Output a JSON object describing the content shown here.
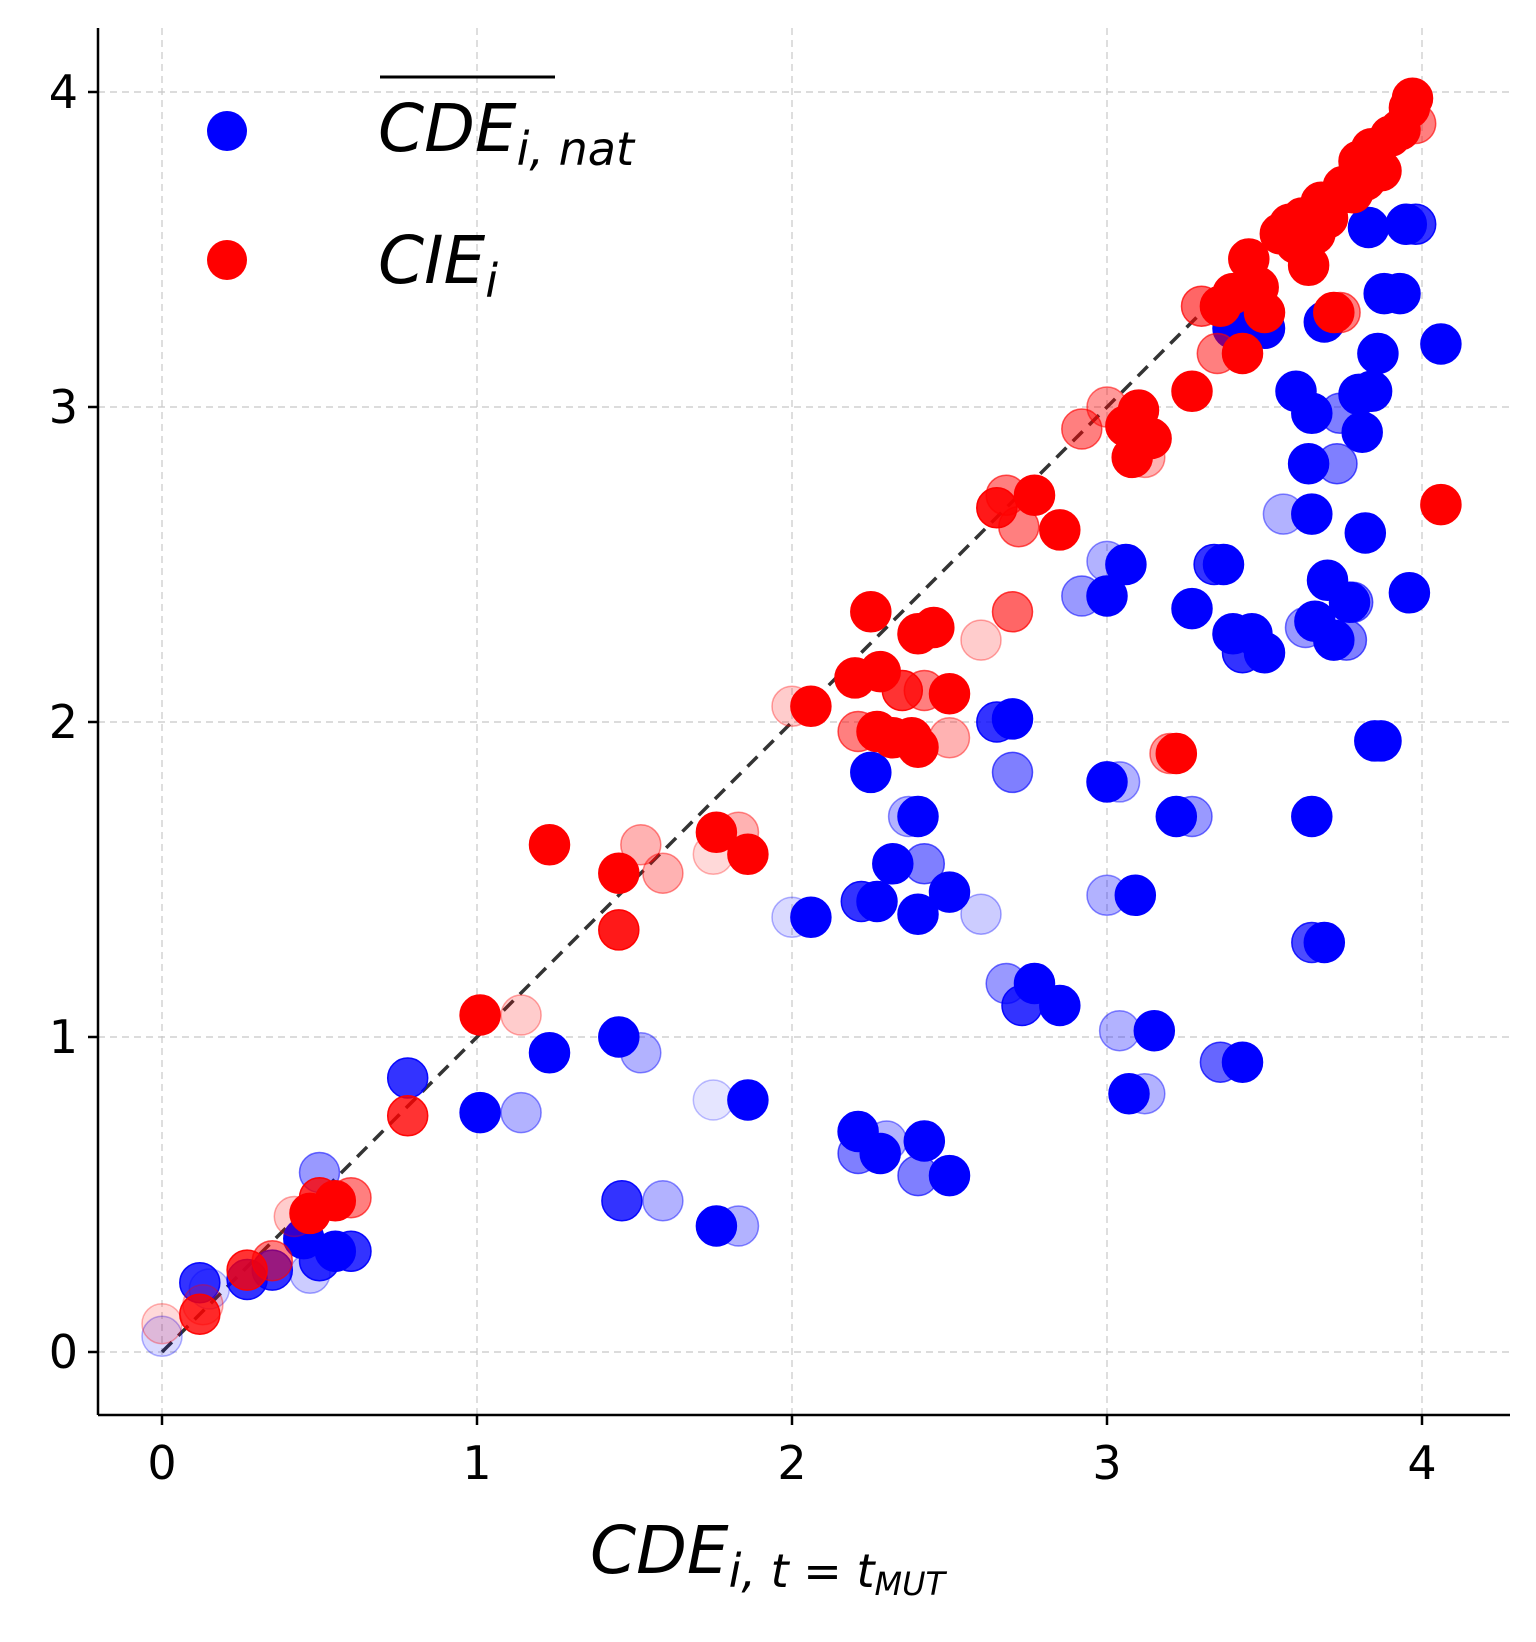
{
  "chart_data": {
    "type": "scatter",
    "xlabel": {
      "base": "CDE",
      "sub": "i, t = t",
      "subsub": "MUT"
    },
    "xlim": [
      -0.2,
      4.27
    ],
    "ylim": [
      -0.2,
      4.2
    ],
    "xticks": [
      "0",
      "1",
      "2",
      "3",
      "4"
    ],
    "yticks": [
      "0",
      "1",
      "2",
      "3",
      "4"
    ],
    "grid": true,
    "legend_position": "top-left",
    "reference_line": {
      "style": "dashed",
      "from": [
        0,
        0
      ],
      "to": [
        4,
        4
      ],
      "color": "#333333"
    },
    "series": [
      {
        "name": "CDE",
        "legend_base": "CDE",
        "legend_sub": "i, nat",
        "legend_overline": true,
        "color": "#0000ff",
        "points": [
          [
            0.0,
            0.05,
            0.15
          ],
          [
            0.12,
            0.22,
            0.8
          ],
          [
            0.15,
            0.2,
            0.15
          ],
          [
            0.27,
            0.23,
            0.8
          ],
          [
            0.35,
            0.26,
            0.8
          ],
          [
            0.45,
            0.36,
            1.0
          ],
          [
            0.47,
            0.25,
            0.2
          ],
          [
            0.5,
            0.57,
            0.4
          ],
          [
            0.5,
            0.29,
            0.8
          ],
          [
            0.55,
            0.32,
            1.0
          ],
          [
            0.6,
            0.32,
            0.8
          ],
          [
            0.78,
            0.87,
            0.8
          ],
          [
            1.01,
            0.76,
            1.0
          ],
          [
            1.14,
            0.76,
            0.3
          ],
          [
            1.23,
            0.95,
            1.0
          ],
          [
            1.45,
            1.0,
            1.0
          ],
          [
            1.52,
            0.95,
            0.3
          ],
          [
            1.46,
            0.48,
            0.8
          ],
          [
            1.59,
            0.48,
            0.3
          ],
          [
            1.76,
            0.4,
            1.0
          ],
          [
            1.75,
            0.8,
            0.1
          ],
          [
            1.83,
            0.4,
            0.3
          ],
          [
            1.86,
            0.8,
            1.0
          ],
          [
            2.06,
            1.38,
            1.0
          ],
          [
            2.0,
            1.38,
            0.15
          ],
          [
            2.22,
            1.43,
            0.8
          ],
          [
            2.27,
            1.43,
            1.0
          ],
          [
            2.25,
            1.84,
            1.0
          ],
          [
            2.32,
            1.55,
            1.0
          ],
          [
            2.37,
            1.7,
            0.3
          ],
          [
            2.4,
            1.7,
            1.0
          ],
          [
            2.42,
            1.55,
            0.5
          ],
          [
            2.4,
            1.39,
            1.0
          ],
          [
            2.5,
            1.46,
            1.0
          ],
          [
            2.6,
            1.39,
            0.2
          ],
          [
            2.21,
            0.7,
            1.0
          ],
          [
            2.21,
            0.63,
            0.5
          ],
          [
            2.28,
            0.63,
            1.0
          ],
          [
            2.3,
            0.67,
            0.3
          ],
          [
            2.4,
            0.56,
            0.5
          ],
          [
            2.42,
            0.67,
            1.0
          ],
          [
            2.5,
            0.56,
            1.0
          ],
          [
            2.65,
            2.0,
            0.8
          ],
          [
            2.7,
            2.01,
            1.0
          ],
          [
            2.7,
            1.84,
            0.5
          ],
          [
            2.68,
            1.17,
            0.4
          ],
          [
            2.73,
            1.1,
            0.8
          ],
          [
            2.77,
            1.17,
            1.0
          ],
          [
            2.85,
            1.1,
            1.0
          ],
          [
            2.92,
            2.4,
            0.4
          ],
          [
            3.0,
            2.4,
            1.0
          ],
          [
            3.0,
            2.51,
            0.3
          ],
          [
            3.06,
            2.5,
            1.0
          ],
          [
            3.04,
            1.81,
            0.3
          ],
          [
            3.0,
            1.81,
            1.0
          ],
          [
            3.0,
            1.45,
            0.3
          ],
          [
            3.09,
            1.45,
            1.0
          ],
          [
            3.04,
            1.02,
            0.3
          ],
          [
            3.15,
            1.02,
            1.0
          ],
          [
            3.07,
            0.82,
            1.0
          ],
          [
            3.12,
            0.82,
            0.3
          ],
          [
            3.27,
            1.7,
            0.4
          ],
          [
            3.22,
            1.7,
            1.0
          ],
          [
            3.27,
            2.36,
            1.0
          ],
          [
            3.34,
            2.5,
            0.8
          ],
          [
            3.37,
            2.5,
            1.0
          ],
          [
            3.4,
            2.28,
            1.0
          ],
          [
            3.43,
            2.22,
            0.8
          ],
          [
            3.46,
            2.28,
            1.0
          ],
          [
            3.5,
            2.22,
            1.0
          ],
          [
            3.36,
            0.92,
            0.6
          ],
          [
            3.43,
            0.92,
            1.0
          ],
          [
            3.56,
            2.66,
            0.3
          ],
          [
            3.6,
            3.05,
            1.0
          ],
          [
            3.64,
            2.82,
            1.0
          ],
          [
            3.65,
            2.98,
            1.0
          ],
          [
            3.65,
            2.66,
            1.0
          ],
          [
            3.63,
            2.3,
            0.4
          ],
          [
            3.66,
            2.32,
            1.0
          ],
          [
            3.7,
            2.45,
            1.0
          ],
          [
            3.72,
            2.26,
            1.0
          ],
          [
            3.73,
            2.82,
            0.5
          ],
          [
            3.74,
            2.98,
            0.5
          ],
          [
            3.77,
            2.38,
            1.0
          ],
          [
            3.76,
            2.26,
            0.5
          ],
          [
            3.65,
            1.7,
            1.0
          ],
          [
            3.65,
            1.3,
            0.7
          ],
          [
            3.69,
            1.3,
            1.0
          ],
          [
            3.78,
            2.38,
            0.5
          ],
          [
            3.81,
            2.92,
            1.0
          ],
          [
            3.8,
            3.04,
            1.0
          ],
          [
            3.82,
            2.6,
            1.0
          ],
          [
            3.84,
            3.05,
            1.0
          ],
          [
            3.86,
            3.17,
            1.0
          ],
          [
            3.85,
            1.94,
            1.0
          ],
          [
            3.87,
            1.94,
            1.0
          ],
          [
            3.88,
            3.36,
            1.0
          ],
          [
            3.93,
            3.36,
            1.0
          ],
          [
            3.96,
            2.41,
            1.0
          ],
          [
            4.06,
            3.2,
            1.0
          ],
          [
            3.69,
            3.27,
            1.0
          ],
          [
            3.4,
            3.25,
            1.0
          ],
          [
            3.46,
            3.26,
            1.0
          ],
          [
            3.5,
            3.25,
            1.0
          ],
          [
            3.83,
            3.57,
            1.0
          ],
          [
            3.95,
            3.58,
            1.0
          ],
          [
            3.98,
            3.58,
            0.8
          ]
        ]
      },
      {
        "name": "CIE",
        "legend_base": "CIE",
        "legend_sub": "i",
        "legend_overline": false,
        "color": "#ff0000",
        "points": [
          [
            0.0,
            0.09,
            0.15
          ],
          [
            0.12,
            0.12,
            0.8
          ],
          [
            0.13,
            0.15,
            0.2
          ],
          [
            0.27,
            0.26,
            0.8
          ],
          [
            0.35,
            0.29,
            0.5
          ],
          [
            0.42,
            0.43,
            0.2
          ],
          [
            0.47,
            0.44,
            1.0
          ],
          [
            0.5,
            0.49,
            0.8
          ],
          [
            0.55,
            0.48,
            1.0
          ],
          [
            0.6,
            0.49,
            0.5
          ],
          [
            0.78,
            0.75,
            0.8
          ],
          [
            1.01,
            1.07,
            1.0
          ],
          [
            1.14,
            1.07,
            0.2
          ],
          [
            1.23,
            1.61,
            1.0
          ],
          [
            1.45,
            1.34,
            0.9
          ],
          [
            1.45,
            1.52,
            1.0
          ],
          [
            1.52,
            1.61,
            0.3
          ],
          [
            1.59,
            1.52,
            0.3
          ],
          [
            1.75,
            1.58,
            0.15
          ],
          [
            1.76,
            1.65,
            1.0
          ],
          [
            1.83,
            1.65,
            0.3
          ],
          [
            1.86,
            1.58,
            1.0
          ],
          [
            2.0,
            2.05,
            0.2
          ],
          [
            2.06,
            2.05,
            1.0
          ],
          [
            2.2,
            2.14,
            1.0
          ],
          [
            2.21,
            1.97,
            0.5
          ],
          [
            2.25,
            2.35,
            1.0
          ],
          [
            2.27,
            1.97,
            1.0
          ],
          [
            2.28,
            2.16,
            1.0
          ],
          [
            2.32,
            1.95,
            1.0
          ],
          [
            2.35,
            2.1,
            0.8
          ],
          [
            2.38,
            1.95,
            1.0
          ],
          [
            2.4,
            2.28,
            1.0
          ],
          [
            2.4,
            1.92,
            1.0
          ],
          [
            2.42,
            2.1,
            0.5
          ],
          [
            2.45,
            2.3,
            1.0
          ],
          [
            2.5,
            2.09,
            1.0
          ],
          [
            2.5,
            1.95,
            0.3
          ],
          [
            2.6,
            2.26,
            0.2
          ],
          [
            2.65,
            2.68,
            0.9
          ],
          [
            2.68,
            2.72,
            0.5
          ],
          [
            2.7,
            2.35,
            0.6
          ],
          [
            2.72,
            2.62,
            0.5
          ],
          [
            2.77,
            2.72,
            1.0
          ],
          [
            2.85,
            2.61,
            1.0
          ],
          [
            2.92,
            2.93,
            0.5
          ],
          [
            3.0,
            3.0,
            0.4
          ],
          [
            3.06,
            2.94,
            1.0
          ],
          [
            3.08,
            2.84,
            1.0
          ],
          [
            3.1,
            2.99,
            1.0
          ],
          [
            3.14,
            2.9,
            1.0
          ],
          [
            3.12,
            2.84,
            0.3
          ],
          [
            3.2,
            1.9,
            0.4
          ],
          [
            3.22,
            1.9,
            1.0
          ],
          [
            3.27,
            3.05,
            1.0
          ],
          [
            3.3,
            3.32,
            0.6
          ],
          [
            3.35,
            3.17,
            0.5
          ],
          [
            3.36,
            3.32,
            1.0
          ],
          [
            3.4,
            3.36,
            1.0
          ],
          [
            3.43,
            3.17,
            1.0
          ],
          [
            3.45,
            3.47,
            1.0
          ],
          [
            3.48,
            3.38,
            1.0
          ],
          [
            3.5,
            3.3,
            1.0
          ],
          [
            3.55,
            3.55,
            1.0
          ],
          [
            3.58,
            3.58,
            1.0
          ],
          [
            3.6,
            3.52,
            1.0
          ],
          [
            3.62,
            3.6,
            1.0
          ],
          [
            3.64,
            3.45,
            1.0
          ],
          [
            3.66,
            3.55,
            1.0
          ],
          [
            3.68,
            3.65,
            1.0
          ],
          [
            3.7,
            3.6,
            1.0
          ],
          [
            3.72,
            3.3,
            1.0
          ],
          [
            3.74,
            3.3,
            0.5
          ],
          [
            3.75,
            3.7,
            1.0
          ],
          [
            3.78,
            3.68,
            1.0
          ],
          [
            3.8,
            3.78,
            1.0
          ],
          [
            3.82,
            3.72,
            1.0
          ],
          [
            3.84,
            3.82,
            1.0
          ],
          [
            3.87,
            3.75,
            1.0
          ],
          [
            3.9,
            3.86,
            1.0
          ],
          [
            3.93,
            3.88,
            1.0
          ],
          [
            3.96,
            3.95,
            1.0
          ],
          [
            3.97,
            3.98,
            1.0
          ],
          [
            3.98,
            3.9,
            0.5
          ],
          [
            4.06,
            2.69,
            1.0
          ]
        ]
      }
    ]
  }
}
